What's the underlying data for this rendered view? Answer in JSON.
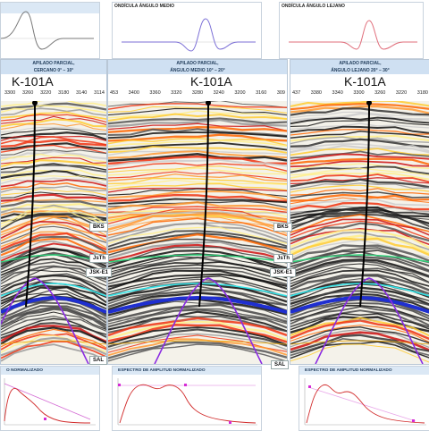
{
  "wavelets": [
    {
      "title": ""
    },
    {
      "title": "ONDÍCULA ÁNGULO MEDIO"
    },
    {
      "title": "ONDÍCULA ÁNGULO LEJANO"
    }
  ],
  "panels": [
    {
      "title_l1": "APILADO PARCIAL,",
      "title_l2": "CERCANO 0° – 10°",
      "well": "K-101A",
      "ticks": [
        "3300",
        "3260",
        "3220",
        "3180",
        "3140",
        "3114"
      ]
    },
    {
      "title_l1": "APILADO PARCIAL,",
      "title_l2": "ÁNGULO MEDIO 10° – 20°",
      "well": "K-101A",
      "ticks": [
        "453",
        "3400",
        "3360",
        "3320",
        "3280",
        "3240",
        "3200",
        "3160",
        "309"
      ]
    },
    {
      "title_l1": "APILADO PARCIAL,",
      "title_l2": "ÁNGULO LEJANO 20° – 30°",
      "well": "K-101A",
      "ticks": [
        "437",
        "3380",
        "3340",
        "3300",
        "3260",
        "3220",
        "3180"
      ]
    }
  ],
  "markers": [
    "BKS",
    "JsTh",
    "JSK-E1",
    "SAL"
  ],
  "spectra": [
    {
      "title": "O NORMALIZADO"
    },
    {
      "title": "ESPECTRO DE AMPLITUD NORMALIZADO"
    },
    {
      "title": "ESPECTRO DE AMPLITUD NORMALIZADO"
    }
  ],
  "colors": {
    "wavelet_near": "#7a7a7a",
    "wavelet_mid": "#7b6fd6",
    "wavelet_far": "#e06d7a",
    "bks": "#2fd27a",
    "jsth": "#35e2e6",
    "jskE1": "#1f2fd0",
    "sal": "#8a2be2",
    "ambar": "#e9a400"
  }
}
